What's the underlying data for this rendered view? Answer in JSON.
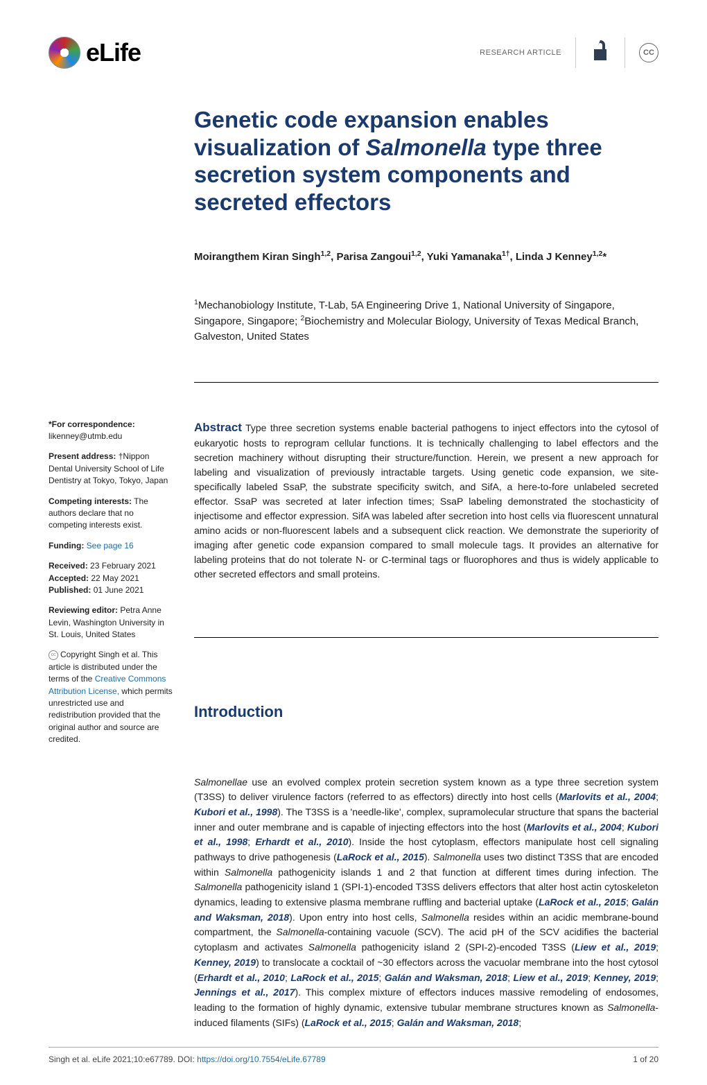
{
  "header": {
    "journal": "eLife",
    "article_type": "RESEARCH ARTICLE",
    "oa_glyph": "∂",
    "cc_label": "CC"
  },
  "article": {
    "title_html": "Genetic code expansion enables visualization of <em>Salmonella</em> type three secretion system components and secreted effectors",
    "authors_html": "Moirangthem Kiran Singh<sup>1,2</sup>, Parisa Zangoui<sup>1,2</sup>, Yuki Yamanaka<sup>1†</sup>, Linda J Kenney<sup>1,2</sup>*",
    "affiliations_html": "<sup>1</sup>Mechanobiology Institute, T-Lab, 5A Engineering Drive 1, National University of Singapore, Singapore, Singapore; <sup>2</sup>Biochemistry and Molecular Biology, University of Texas Medical Branch, Galveston, United States",
    "abstract_label": "Abstract",
    "abstract_text": "Type three secretion systems enable bacterial pathogens to inject effectors into the cytosol of eukaryotic hosts to reprogram cellular functions. It is technically challenging to label effectors and the secretion machinery without disrupting their structure/function. Herein, we present a new approach for labeling and visualization of previously intractable targets. Using genetic code expansion, we site-specifically labeled SsaP, the substrate specificity switch, and SifA, a here-to-fore unlabeled secreted effector. SsaP was secreted at later infection times; SsaP labeling demonstrated the stochasticity of injectisome and effector expression. SifA was labeled after secretion into host cells via fluorescent unnatural amino acids or non-fluorescent labels and a subsequent click reaction. We demonstrate the superiority of imaging after genetic code expansion compared to small molecule tags. It provides an alternative for labeling proteins that do not tolerate N- or C-terminal tags or fluorophores and thus is widely applicable to other secreted effectors and small proteins.",
    "intro_heading": "Introduction",
    "intro_html": "<em>Salmonellae</em> use an evolved complex protein secretion system known as a type three secretion system (T3SS) to deliver virulence factors (referred to as effectors) directly into host cells (<span class=\"ref\">Marlovits et al., 2004</span>; <span class=\"ref\">Kubori et al., 1998</span>). The T3SS is a 'needle-like', complex, supramolecular structure that spans the bacterial inner and outer membrane and is capable of injecting effectors into the host (<span class=\"ref\">Marlovits et al., 2004</span>; <span class=\"ref\">Kubori et al., 1998</span>; <span class=\"ref\">Erhardt et al., 2010</span>). Inside the host cytoplasm, effectors manipulate host cell signaling pathways to drive pathogenesis (<span class=\"ref\">LaRock et al., 2015</span>). <em>Salmonella</em> uses two distinct T3SS that are encoded within <em>Salmonella</em> pathogenicity islands 1 and 2 that function at different times during infection. The <em>Salmonella</em> pathogenicity island 1 (SPI-1)-encoded T3SS delivers effectors that alter host actin cytoskeleton dynamics, leading to extensive plasma membrane ruffling and bacterial uptake (<span class=\"ref\">LaRock et al., 2015</span>; <span class=\"ref\">Galán and Waksman, 2018</span>). Upon entry into host cells, <em>Salmonella</em> resides within an acidic membrane-bound compartment, the <em>Salmonella</em>-containing vacuole (SCV). The acid pH of the SCV acidifies the bacterial cytoplasm and activates <em>Salmonella</em> pathogenicity island 2 (SPI-2)-encoded T3SS (<span class=\"ref\">Liew et al., 2019</span>; <span class=\"ref\">Kenney, 2019</span>) to translocate a cocktail of ~30 effectors across the vacuolar membrane into the host cytosol (<span class=\"ref\">Erhardt et al., 2010</span>; <span class=\"ref\">LaRock et al., 2015</span>; <span class=\"ref\">Galán and Waksman, 2018</span>; <span class=\"ref\">Liew et al., 2019</span>; <span class=\"ref\">Kenney, 2019</span>; <span class=\"ref\">Jennings et al., 2017</span>). This complex mixture of effectors induces massive remodeling of endosomes, leading to the formation of highly dynamic, extensive tubular membrane structures known as <em>Salmonella</em>-induced filaments (SIFs) (<span class=\"ref\">LaRock et al., 2015</span>; <span class=\"ref\">Galán and Waksman, 2018</span>;"
  },
  "sidebar": {
    "correspondence_label": "*For correspondence:",
    "correspondence_email": "likenney@utmb.edu",
    "present_label": "Present address:",
    "present_text": "†Nippon Dental University School of Life Dentistry at Tokyo, Tokyo, Japan",
    "competing_label": "Competing interests:",
    "competing_text": "The authors declare that no competing interests exist.",
    "funding_label": "Funding:",
    "funding_link": "See page 16",
    "received_label": "Received:",
    "received_date": "23 February 2021",
    "accepted_label": "Accepted:",
    "accepted_date": "22 May 2021",
    "published_label": "Published:",
    "published_date": "01 June 2021",
    "reviewing_label": "Reviewing editor:",
    "reviewing_text": "Petra Anne Levin, Washington University in St. Louis, United States",
    "copyright_html": "Copyright Singh et al. This article is distributed under the terms of the <a href=\"#\">Creative Commons Attribution License,</a> which permits unrestricted use and redistribution provided that the original author and source are credited."
  },
  "footer": {
    "citation": "Singh et al. eLife 2021;10:e67789. DOI: ",
    "doi": "https://doi.org/10.7554/eLife.67789",
    "page": "1 of 20"
  },
  "colors": {
    "heading": "#1a3a6e",
    "link": "#1a6ea8",
    "text": "#222222"
  }
}
